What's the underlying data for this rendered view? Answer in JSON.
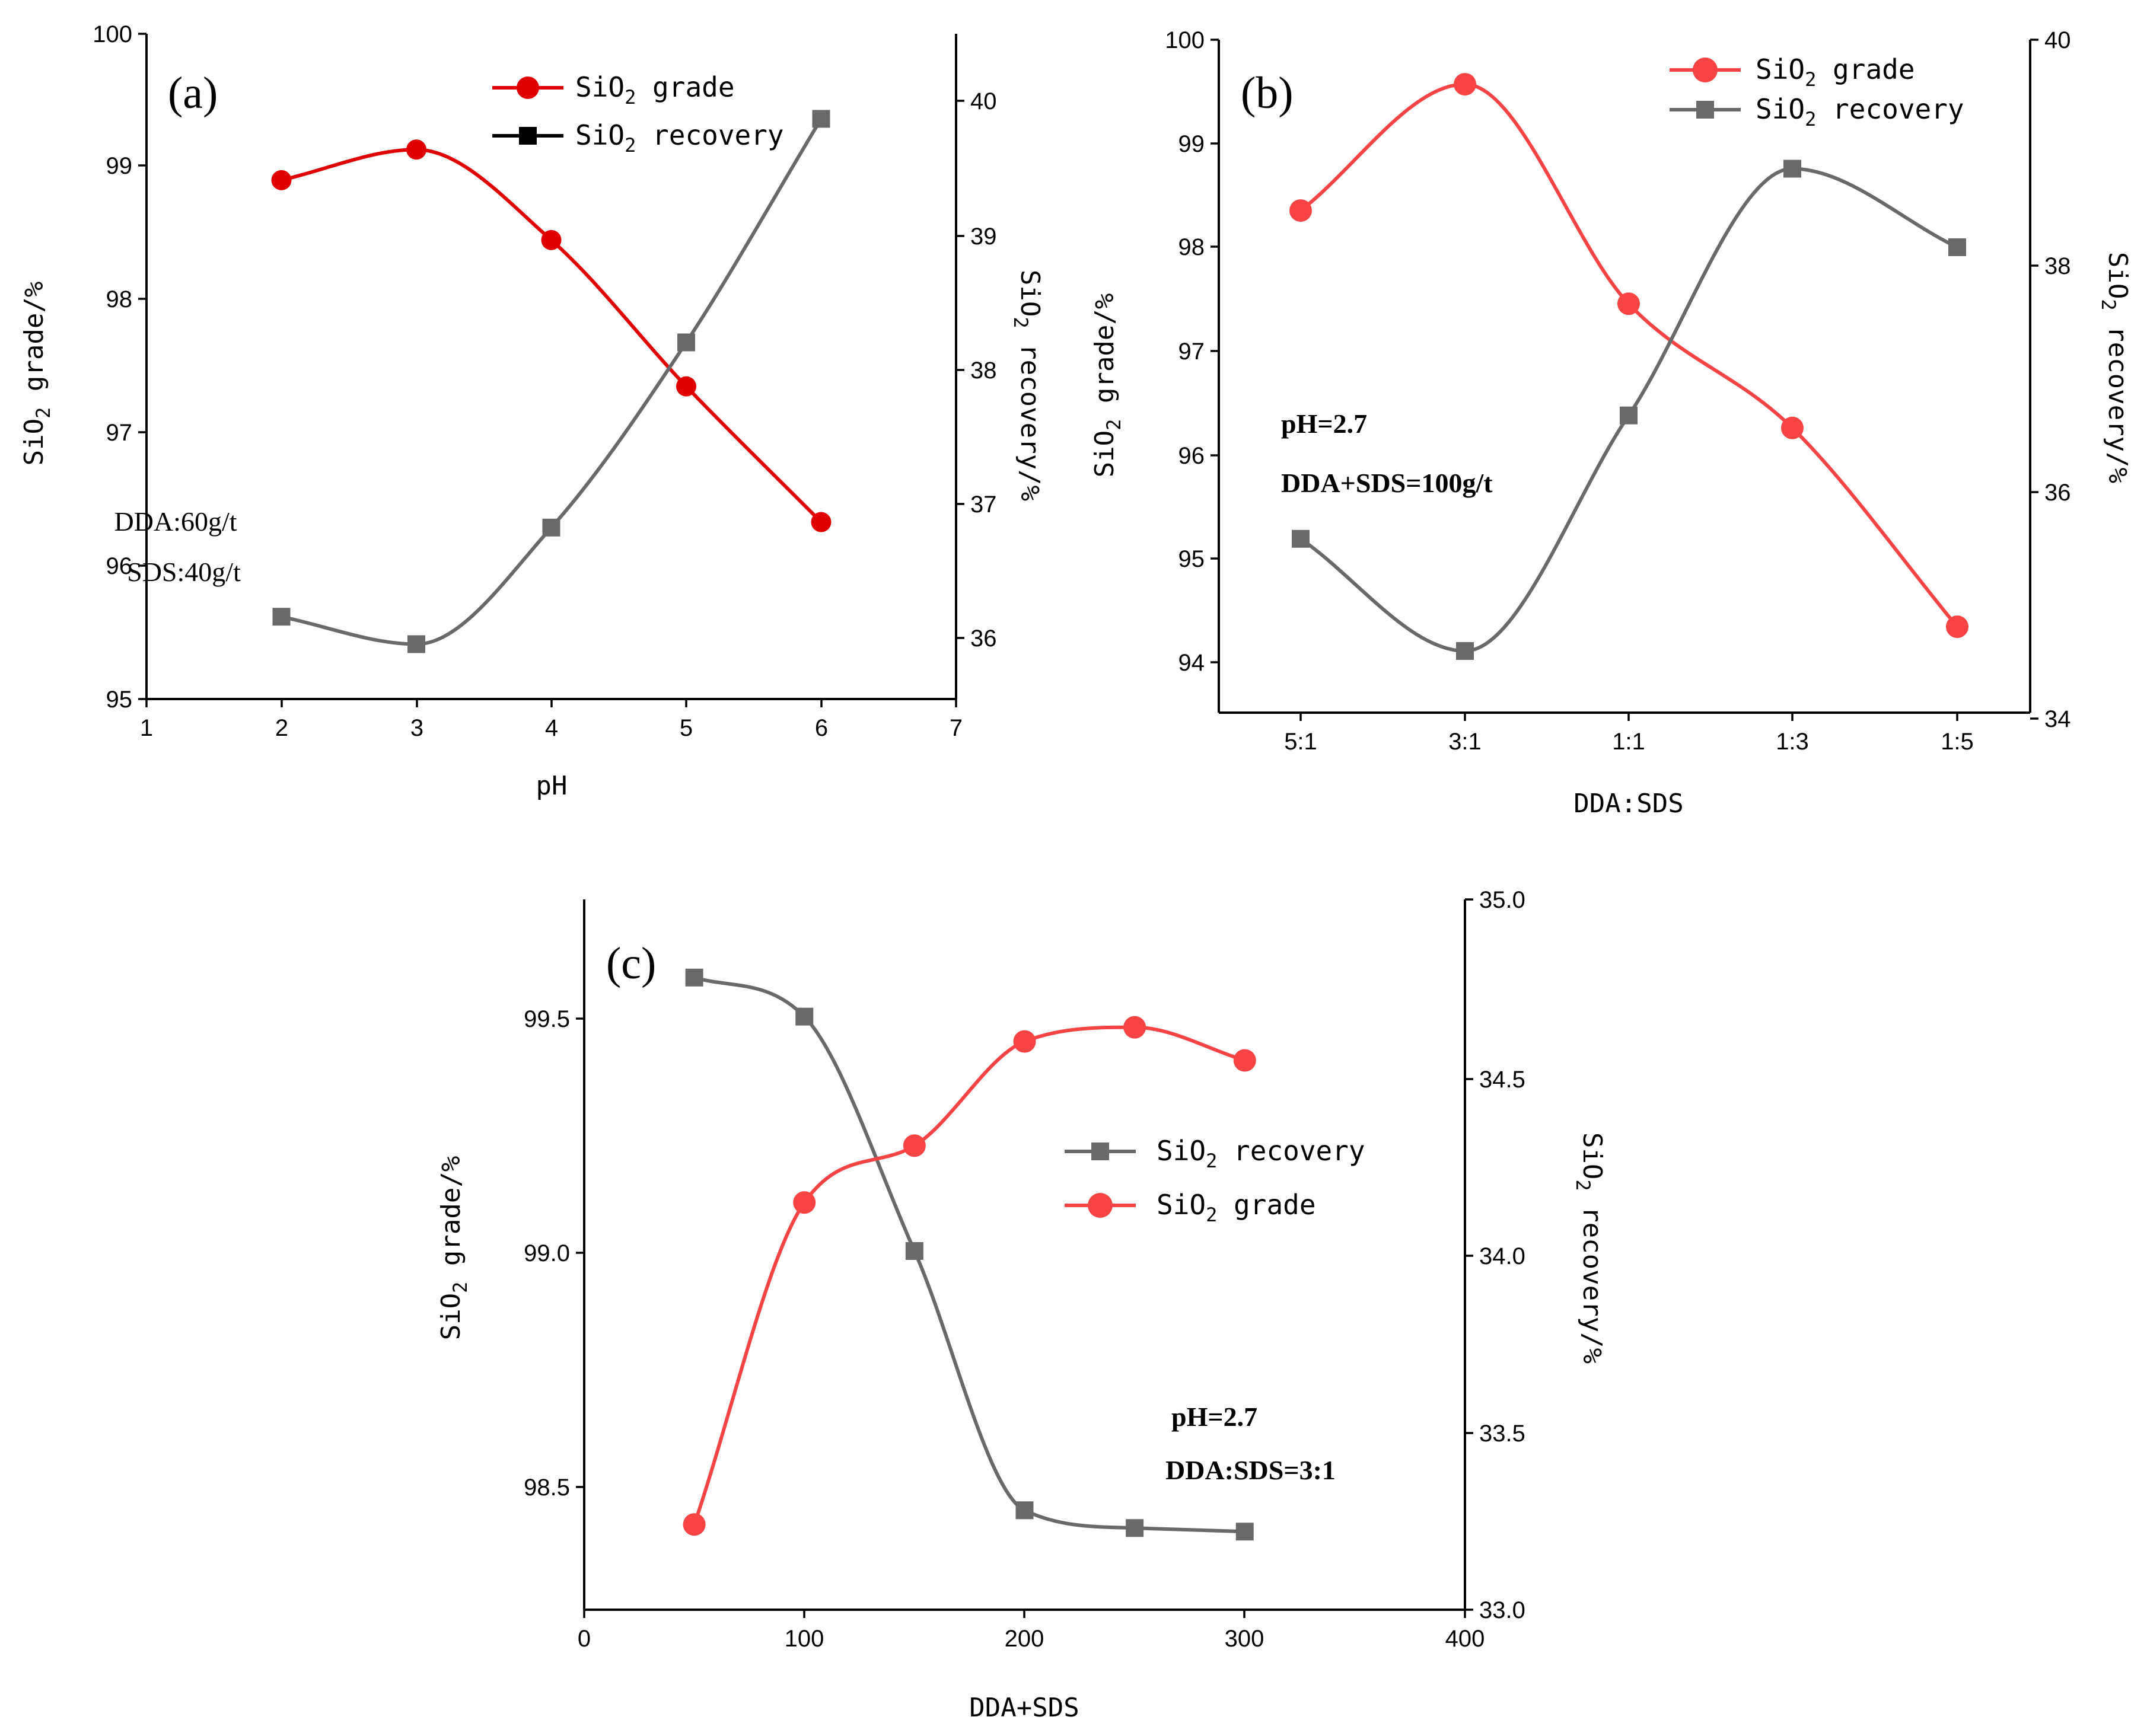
{
  "colors": {
    "red_a": "#e00000",
    "red_bc": "#f64343",
    "gray": "#696969",
    "black": "#000000"
  },
  "chart_data": [
    {
      "id": "a",
      "type": "line",
      "panel_label": "(a)",
      "xlabel": "pH",
      "ylabel_left": "SiO2 grade/%",
      "ylabel_right": "SiO2 recovery/%",
      "xlim": [
        1,
        7
      ],
      "ylim_left": [
        95,
        100
      ],
      "ylim_right": [
        35.55,
        40.4
      ],
      "x_ticks": [
        "1",
        "2",
        "3",
        "4",
        "5",
        "6",
        "7"
      ],
      "y_ticks_left": [
        "95",
        "96",
        "97",
        "98",
        "99",
        "100"
      ],
      "y_ticks_right": [
        "36",
        "37",
        "38",
        "39",
        "40"
      ],
      "series": [
        {
          "name": "SiO2 grade",
          "axis": "left",
          "marker": "circle",
          "color": "#e00000",
          "x": [
            2,
            3,
            4,
            5,
            6
          ],
          "values": [
            98.9,
            99.13,
            98.45,
            97.35,
            96.33
          ]
        },
        {
          "name": "SiO2 recovery",
          "axis": "right",
          "marker": "square",
          "color": "#696969",
          "legend_color": "#000000",
          "x": [
            2,
            3,
            4,
            5,
            6
          ],
          "values": [
            36.15,
            35.95,
            36.8,
            38.15,
            39.78
          ]
        }
      ],
      "annotations": [
        "DDA:60g/t",
        "SDS:40g/t"
      ]
    },
    {
      "id": "b",
      "type": "line",
      "panel_label": "(b)",
      "xlabel": "DDA:SDS",
      "ylabel_left": "SiO2 grade/%",
      "ylabel_right": "SiO2 recovery/%",
      "categories": [
        "5:1",
        "3:1",
        "1:1",
        "1:3",
        "1:5"
      ],
      "ylim_left": [
        93.5,
        100
      ],
      "ylim_right": [
        34,
        40
      ],
      "y_ticks_left": [
        "94",
        "95",
        "96",
        "97",
        "98",
        "99",
        "100"
      ],
      "y_ticks_right": [
        "34",
        "36",
        "38",
        "40"
      ],
      "series": [
        {
          "name": "SiO2 grade",
          "axis": "left",
          "marker": "circle",
          "color": "#f64343",
          "values": [
            98.35,
            99.57,
            97.45,
            96.25,
            94.33
          ]
        },
        {
          "name": "SiO2 recovery",
          "axis": "right",
          "marker": "square",
          "color": "#696969",
          "values": [
            35.55,
            34.55,
            36.65,
            38.85,
            38.15
          ]
        }
      ],
      "annotations": [
        "pH=2.7",
        "DDA+SDS=100g/t"
      ]
    },
    {
      "id": "c",
      "type": "line",
      "panel_label": "(c)",
      "xlabel": "DDA+SDS",
      "ylabel_left": "SiO2 grade/%",
      "ylabel_right": "SiO2 recovery/%",
      "xlim": [
        0,
        400
      ],
      "ylim_left": [
        98.25,
        99.75
      ],
      "ylim_right": [
        33.0,
        35.0
      ],
      "x_ticks": [
        "0",
        "100",
        "200",
        "300",
        "400"
      ],
      "y_ticks_left": [
        "98.5",
        "99.0",
        "99.5"
      ],
      "y_ticks_right": [
        "33.0",
        "33.5",
        "34.0",
        "34.5",
        "35.0"
      ],
      "series": [
        {
          "name": "SiO2 recovery",
          "axis": "right",
          "marker": "square",
          "color": "#696969",
          "x": [
            50,
            100,
            150,
            200,
            250,
            300
          ],
          "values": [
            34.78,
            34.67,
            34.01,
            33.28,
            33.23,
            33.22
          ]
        },
        {
          "name": "SiO2 grade",
          "axis": "left",
          "marker": "circle",
          "color": "#f64343",
          "x": [
            50,
            100,
            150,
            200,
            250,
            300
          ],
          "values": [
            98.43,
            99.11,
            99.23,
            99.45,
            99.48,
            99.41
          ]
        }
      ],
      "annotations": [
        "pH=2.7",
        "DDA:SDS=3:1"
      ]
    }
  ]
}
